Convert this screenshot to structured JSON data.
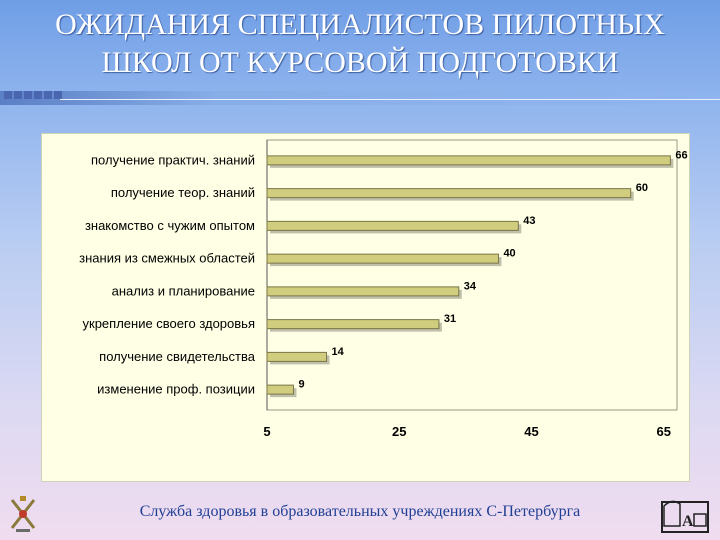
{
  "slide": {
    "title_line1": "ОЖИДАНИЯ СПЕЦИАЛИСТОВ ПИЛОТНЫХ",
    "title_line2": "ШКОЛ ОТ КУРСОВОЙ ПОДГОТОВКИ",
    "footer": "Служба здоровья в образовательных учреждениях С-Петербурга"
  },
  "colors": {
    "bar_fill": "#d1cd7e",
    "bar_edge": "#7a7648",
    "panel_bg": "#ffffe5",
    "title_color": "#ffffff",
    "footer_color": "#1f3f94"
  },
  "icons": [
    "saint-petersburg-emblem-icon",
    "school-logo-icon"
  ],
  "chart_data": {
    "type": "bar",
    "orientation": "horizontal",
    "categories": [
      "получение практич. знаний",
      "получение теор. знаний",
      "знакомство с чужим опытом",
      "знания из смежных областей",
      "анализ и планирование",
      "укрепление своего здоровья",
      "получение свидетельства",
      "изменение проф. позиции"
    ],
    "values": [
      66,
      60,
      43,
      40,
      34,
      31,
      14,
      9
    ],
    "xlim": [
      5,
      67
    ],
    "xticks": [
      5,
      25,
      45,
      65
    ],
    "grid": false,
    "data_labels": true
  }
}
